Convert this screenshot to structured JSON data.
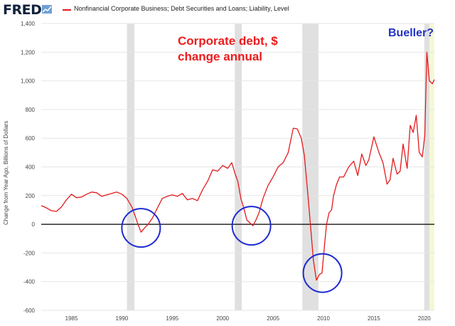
{
  "header": {
    "logo": "FRED",
    "logo_icon": "line-chart-icon",
    "legend_label": "Nonfinancial Corporate Business; Debt Securities and Loans; Liability, Level"
  },
  "annotations": {
    "main_line1": "Corporate debt, $",
    "main_line2": "change annual",
    "bueller": "Bueller?"
  },
  "colors": {
    "series": "#e41a1c",
    "recession": "#e0e0e0",
    "forecast_band": "#f6f7d6",
    "circle": "#1f2bd1",
    "zero_line": "#000000"
  },
  "chart_data": {
    "type": "line",
    "xlabel": "",
    "ylabel": "Change from Year Ago, Billions of Dollars",
    "xlim": [
      1982.0,
      2021.0
    ],
    "ylim": [
      -600,
      1400
    ],
    "xticks": [
      1985,
      1990,
      1995,
      2000,
      2005,
      2010,
      2015,
      2020
    ],
    "yticks": [
      -600,
      -400,
      -200,
      0,
      200,
      400,
      600,
      800,
      1000,
      1200,
      1400
    ],
    "ytick_labels": [
      "-600",
      "-400",
      "-200",
      "0",
      "200",
      "400",
      "600",
      "800",
      "1,000",
      "1,200",
      "1,400"
    ],
    "grid": true,
    "recessions": [
      [
        1990.5,
        1991.25
      ],
      [
        2001.2,
        2001.9
      ],
      [
        2007.9,
        2009.5
      ],
      [
        2020.0,
        2020.5
      ]
    ],
    "highlight_band": [
      2020.0,
      2021.0
    ],
    "circles": [
      {
        "x": 1991.9,
        "y": -25
      },
      {
        "x": 2002.85,
        "y": -10
      },
      {
        "x": 2009.9,
        "y": -340
      }
    ],
    "series": [
      {
        "x": [
          1982.0,
          1982.5,
          1983.0,
          1983.5,
          1984.0,
          1984.5,
          1985.0,
          1985.5,
          1986.0,
          1986.5,
          1987.0,
          1987.5,
          1988.0,
          1988.5,
          1989.0,
          1989.5,
          1990.0,
          1990.5,
          1991.0,
          1991.3,
          1991.6,
          1991.9,
          1992.2,
          1992.6,
          1993.0,
          1993.5,
          1994.0,
          1994.5,
          1995.0,
          1995.5,
          1996.0,
          1996.5,
          1997.0,
          1997.5,
          1998.0,
          1998.5,
          1999.0,
          1999.5,
          2000.0,
          2000.5,
          2000.9,
          2001.2,
          2001.5,
          2001.8,
          2002.1,
          2002.4,
          2002.7,
          2003.0,
          2003.3,
          2003.6,
          2004.0,
          2004.5,
          2005.0,
          2005.5,
          2006.0,
          2006.5,
          2007.0,
          2007.4,
          2007.8,
          2008.1,
          2008.4,
          2008.7,
          2009.0,
          2009.3,
          2009.6,
          2009.85,
          2010.1,
          2010.3,
          2010.55,
          2010.8,
          2011.0,
          2011.3,
          2011.6,
          2012.0,
          2012.5,
          2013.0,
          2013.4,
          2013.8,
          2014.2,
          2014.5,
          2015.0,
          2015.5,
          2015.9,
          2016.3,
          2016.6,
          2016.9,
          2017.3,
          2017.6,
          2017.9,
          2018.3,
          2018.6,
          2018.9,
          2019.2,
          2019.5,
          2019.8,
          2020.05,
          2020.25,
          2020.5,
          2020.8,
          2021.0
        ],
        "y": [
          130,
          115,
          95,
          90,
          120,
          170,
          210,
          185,
          190,
          210,
          225,
          220,
          195,
          205,
          215,
          225,
          210,
          180,
          120,
          60,
          0,
          -55,
          -30,
          0,
          40,
          110,
          180,
          195,
          205,
          195,
          215,
          170,
          180,
          165,
          240,
          300,
          380,
          370,
          410,
          390,
          430,
          360,
          300,
          180,
          110,
          30,
          10,
          -10,
          30,
          80,
          180,
          270,
          330,
          400,
          430,
          500,
          670,
          665,
          600,
          480,
          250,
          0,
          -250,
          -390,
          -350,
          -340,
          -150,
          0,
          80,
          100,
          200,
          280,
          330,
          330,
          400,
          440,
          340,
          490,
          410,
          450,
          610,
          500,
          430,
          280,
          310,
          460,
          350,
          370,
          560,
          390,
          690,
          640,
          760,
          500,
          470,
          620,
          1200,
          1000,
          980,
          1010
        ]
      }
    ]
  }
}
